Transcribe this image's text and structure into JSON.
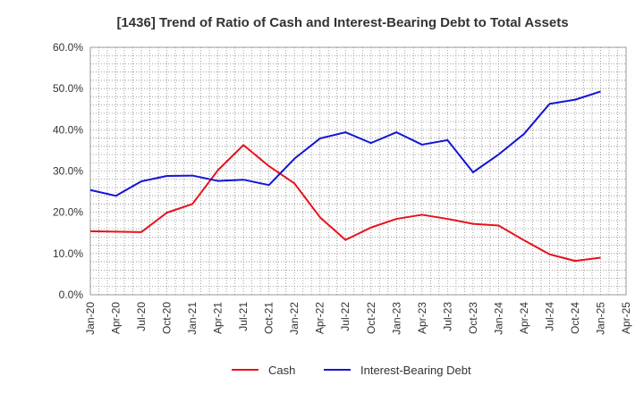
{
  "chart_data": {
    "type": "line",
    "title": "[1436]  Trend of Ratio of Cash and Interest-Bearing Debt to Total Assets",
    "xlabel": "",
    "ylabel": "",
    "x_tick_labels": [
      "Jan-20",
      "Apr-20",
      "Jul-20",
      "Oct-20",
      "Jan-21",
      "Apr-21",
      "Jul-21",
      "Oct-21",
      "Jan-22",
      "Apr-22",
      "Jul-22",
      "Oct-22",
      "Jan-23",
      "Apr-23",
      "Jul-23",
      "Oct-23",
      "Jan-24",
      "Apr-24",
      "Jul-24",
      "Oct-24",
      "Jan-25",
      "Apr-25"
    ],
    "y_tick_labels": [
      "0.0%",
      "10.0%",
      "20.0%",
      "30.0%",
      "40.0%",
      "50.0%",
      "60.0%"
    ],
    "ylim": [
      0,
      60
    ],
    "grid": true,
    "legend_position": "bottom",
    "x": [
      "Jan-20",
      "Apr-20",
      "Jul-20",
      "Oct-20",
      "Jan-21",
      "Apr-21",
      "Jul-21",
      "Oct-21",
      "Jan-22",
      "Apr-22",
      "Jul-22",
      "Oct-22",
      "Jan-23",
      "Apr-23",
      "Jul-23",
      "Oct-23",
      "Jan-24",
      "Apr-24",
      "Jul-24",
      "Oct-24",
      "Jan-25"
    ],
    "series": [
      {
        "name": "Cash",
        "color": "#e8101a",
        "values": [
          15.4,
          15.3,
          15.2,
          19.9,
          22.0,
          30.2,
          36.3,
          31.2,
          27.0,
          18.8,
          13.3,
          16.3,
          18.4,
          19.4,
          18.4,
          17.2,
          16.8,
          13.2,
          9.8,
          8.2,
          9.0
        ]
      },
      {
        "name": "Interest-Bearing Debt",
        "color": "#1414d2",
        "values": [
          25.4,
          24.0,
          27.5,
          28.8,
          28.9,
          27.6,
          27.9,
          26.6,
          33.0,
          37.9,
          39.4,
          36.8,
          39.4,
          36.4,
          37.5,
          29.7,
          34.0,
          39.0,
          46.3,
          47.3,
          49.3
        ]
      }
    ]
  }
}
